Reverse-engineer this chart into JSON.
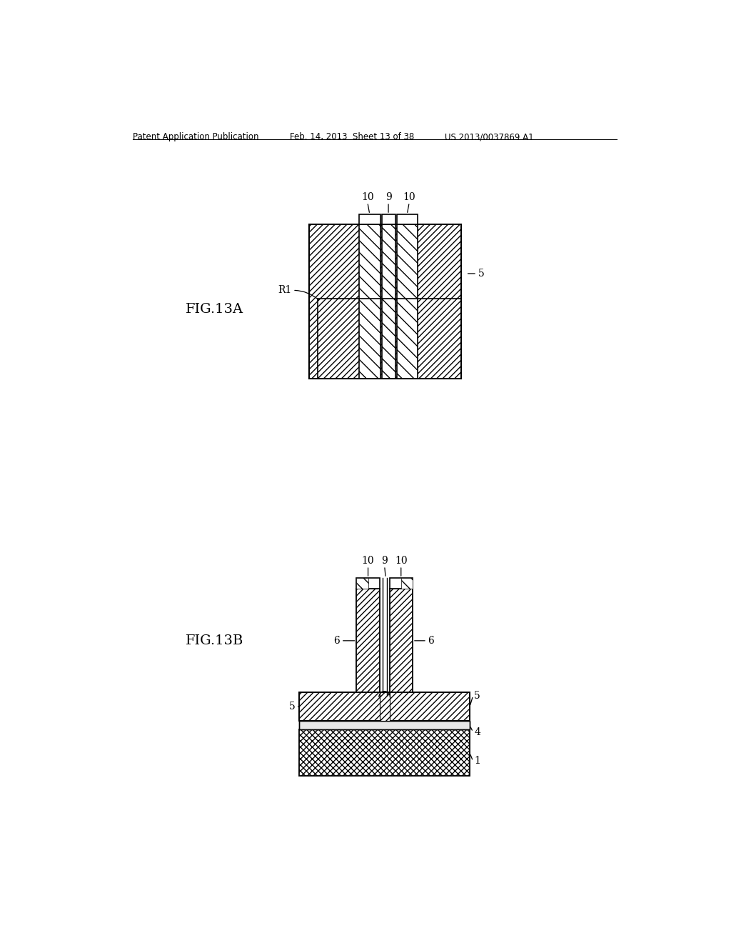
{
  "bg_color": "#ffffff",
  "header_left": "Patent Application Publication",
  "header_mid": "Feb. 14, 2013  Sheet 13 of 38",
  "header_right": "US 2013/0037869 A1",
  "fig13a_label": "FIG.13A",
  "fig13b_label": "FIG.13B"
}
